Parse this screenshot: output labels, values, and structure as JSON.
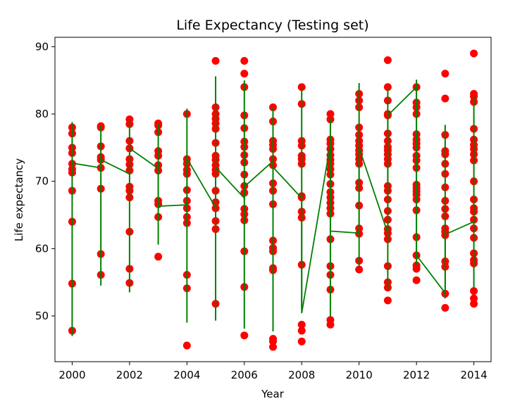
{
  "chart_data": {
    "type": "scatter",
    "title": "Life Expectancy (Testing set)",
    "xlabel": "Year",
    "ylabel": "Life expectancy",
    "xlim": [
      1999.4,
      2014.6
    ],
    "ylim": [
      43.2,
      91.4
    ],
    "xticks": [
      2000,
      2002,
      2004,
      2006,
      2008,
      2010,
      2012,
      2014
    ],
    "yticks": [
      50,
      60,
      70,
      80,
      90
    ],
    "grid": false,
    "colors": {
      "points": "#ff0000",
      "line": "#008000",
      "frame": "#000000"
    },
    "series": [
      {
        "marker": "circle",
        "points": [
          [
            2000,
            78.0
          ],
          [
            2000,
            77.1
          ],
          [
            2000,
            75.0
          ],
          [
            2000,
            74.2
          ],
          [
            2000,
            72.6
          ],
          [
            2000,
            71.8
          ],
          [
            2000,
            71.3
          ],
          [
            2000,
            68.6
          ],
          [
            2000,
            64.0
          ],
          [
            2000,
            54.8
          ],
          [
            2000,
            47.8
          ],
          [
            2001,
            78.2
          ],
          [
            2001,
            78.0
          ],
          [
            2001,
            75.2
          ],
          [
            2001,
            73.6
          ],
          [
            2001,
            73.2
          ],
          [
            2001,
            72.0
          ],
          [
            2001,
            68.9
          ],
          [
            2001,
            59.2
          ],
          [
            2001,
            56.1
          ],
          [
            2002,
            79.2
          ],
          [
            2002,
            78.5
          ],
          [
            2002,
            76.0
          ],
          [
            2002,
            74.9
          ],
          [
            2002,
            73.3
          ],
          [
            2002,
            72.5
          ],
          [
            2002,
            71.6
          ],
          [
            2002,
            69.2
          ],
          [
            2002,
            68.6
          ],
          [
            2002,
            67.6
          ],
          [
            2002,
            62.5
          ],
          [
            2002,
            57.0
          ],
          [
            2002,
            54.9
          ],
          [
            2003,
            78.6
          ],
          [
            2003,
            78.3
          ],
          [
            2003,
            77.3
          ],
          [
            2003,
            74.5
          ],
          [
            2003,
            73.8
          ],
          [
            2003,
            72.4
          ],
          [
            2003,
            71.6
          ],
          [
            2003,
            67.1
          ],
          [
            2003,
            66.6
          ],
          [
            2003,
            64.7
          ],
          [
            2003,
            58.8
          ],
          [
            2004,
            80.0
          ],
          [
            2004,
            73.3
          ],
          [
            2004,
            72.6
          ],
          [
            2004,
            71.7
          ],
          [
            2004,
            71.1
          ],
          [
            2004,
            68.7
          ],
          [
            2004,
            67.1
          ],
          [
            2004,
            66.0
          ],
          [
            2004,
            64.7
          ],
          [
            2004,
            63.8
          ],
          [
            2004,
            56.1
          ],
          [
            2004,
            54.1
          ],
          [
            2004,
            45.6
          ],
          [
            2005,
            87.9
          ],
          [
            2005,
            81.0
          ],
          [
            2005,
            80.0
          ],
          [
            2005,
            79.3
          ],
          [
            2005,
            78.6
          ],
          [
            2005,
            77.8
          ],
          [
            2005,
            75.7
          ],
          [
            2005,
            73.8
          ],
          [
            2005,
            73.2
          ],
          [
            2005,
            72.4
          ],
          [
            2005,
            71.7
          ],
          [
            2005,
            71.1
          ],
          [
            2005,
            68.6
          ],
          [
            2005,
            66.9
          ],
          [
            2005,
            66.0
          ],
          [
            2005,
            64.1
          ],
          [
            2005,
            62.9
          ],
          [
            2005,
            51.8
          ],
          [
            2006,
            87.9
          ],
          [
            2006,
            86.0
          ],
          [
            2006,
            84.0
          ],
          [
            2006,
            79.8
          ],
          [
            2006,
            77.9
          ],
          [
            2006,
            75.9
          ],
          [
            2006,
            75.1
          ],
          [
            2006,
            73.9
          ],
          [
            2006,
            72.8
          ],
          [
            2006,
            71.0
          ],
          [
            2006,
            69.3
          ],
          [
            2006,
            68.3
          ],
          [
            2006,
            65.9
          ],
          [
            2006,
            65.1
          ],
          [
            2006,
            64.2
          ],
          [
            2006,
            59.6
          ],
          [
            2006,
            54.3
          ],
          [
            2006,
            47.1
          ],
          [
            2007,
            81.0
          ],
          [
            2007,
            78.9
          ],
          [
            2007,
            76.0
          ],
          [
            2007,
            75.4
          ],
          [
            2007,
            74.8
          ],
          [
            2007,
            73.3
          ],
          [
            2007,
            72.4
          ],
          [
            2007,
            69.7
          ],
          [
            2007,
            68.6
          ],
          [
            2007,
            66.6
          ],
          [
            2007,
            61.2
          ],
          [
            2007,
            60.1
          ],
          [
            2007,
            59.6
          ],
          [
            2007,
            57.1
          ],
          [
            2007,
            56.8
          ],
          [
            2007,
            46.6
          ],
          [
            2007,
            46.2
          ],
          [
            2007,
            45.4
          ],
          [
            2008,
            84.0
          ],
          [
            2008,
            81.5
          ],
          [
            2008,
            76.0
          ],
          [
            2008,
            75.3
          ],
          [
            2008,
            73.8
          ],
          [
            2008,
            73.3
          ],
          [
            2008,
            72.6
          ],
          [
            2008,
            67.8
          ],
          [
            2008,
            67.6
          ],
          [
            2008,
            65.5
          ],
          [
            2008,
            64.6
          ],
          [
            2008,
            57.6
          ],
          [
            2008,
            48.7
          ],
          [
            2008,
            47.8
          ],
          [
            2008,
            46.2
          ],
          [
            2009,
            80.0
          ],
          [
            2009,
            79.2
          ],
          [
            2009,
            76.2
          ],
          [
            2009,
            75.6
          ],
          [
            2009,
            74.8
          ],
          [
            2009,
            73.9
          ],
          [
            2009,
            73.2
          ],
          [
            2009,
            72.6
          ],
          [
            2009,
            71.8
          ],
          [
            2009,
            71.0
          ],
          [
            2009,
            69.6
          ],
          [
            2009,
            68.4
          ],
          [
            2009,
            67.6
          ],
          [
            2009,
            66.8
          ],
          [
            2009,
            66.0
          ],
          [
            2009,
            65.2
          ],
          [
            2009,
            61.4
          ],
          [
            2009,
            57.4
          ],
          [
            2009,
            56.1
          ],
          [
            2009,
            53.9
          ],
          [
            2009,
            49.4
          ],
          [
            2009,
            48.7
          ],
          [
            2010,
            83.0
          ],
          [
            2010,
            82.0
          ],
          [
            2010,
            81.0
          ],
          [
            2010,
            78.0
          ],
          [
            2010,
            76.9
          ],
          [
            2010,
            76.0
          ],
          [
            2010,
            75.3
          ],
          [
            2010,
            74.6
          ],
          [
            2010,
            74.0
          ],
          [
            2010,
            73.3
          ],
          [
            2010,
            72.6
          ],
          [
            2010,
            69.8
          ],
          [
            2010,
            69.0
          ],
          [
            2010,
            66.4
          ],
          [
            2010,
            63.0
          ],
          [
            2010,
            62.2
          ],
          [
            2010,
            58.2
          ],
          [
            2010,
            56.9
          ],
          [
            2011,
            88.0
          ],
          [
            2011,
            84.0
          ],
          [
            2011,
            82.0
          ],
          [
            2011,
            80.0
          ],
          [
            2011,
            79.8
          ],
          [
            2011,
            77.1
          ],
          [
            2011,
            76.0
          ],
          [
            2011,
            75.1
          ],
          [
            2011,
            74.6
          ],
          [
            2011,
            74.0
          ],
          [
            2011,
            73.3
          ],
          [
            2011,
            72.6
          ],
          [
            2011,
            69.3
          ],
          [
            2011,
            68.6
          ],
          [
            2011,
            67.3
          ],
          [
            2011,
            65.6
          ],
          [
            2011,
            64.3
          ],
          [
            2011,
            62.9
          ],
          [
            2011,
            62.3
          ],
          [
            2011,
            61.4
          ],
          [
            2011,
            57.4
          ],
          [
            2011,
            55.0
          ],
          [
            2011,
            54.2
          ],
          [
            2011,
            52.3
          ],
          [
            2012,
            84.0
          ],
          [
            2012,
            81.7
          ],
          [
            2012,
            81.0
          ],
          [
            2012,
            80.0
          ],
          [
            2012,
            77.0
          ],
          [
            2012,
            76.2
          ],
          [
            2012,
            75.6
          ],
          [
            2012,
            75.0
          ],
          [
            2012,
            73.8
          ],
          [
            2012,
            73.1
          ],
          [
            2012,
            72.0
          ],
          [
            2012,
            69.5
          ],
          [
            2012,
            69.0
          ],
          [
            2012,
            68.5
          ],
          [
            2012,
            68.0
          ],
          [
            2012,
            67.3
          ],
          [
            2012,
            65.7
          ],
          [
            2012,
            61.7
          ],
          [
            2012,
            59.0
          ],
          [
            2012,
            57.5
          ],
          [
            2012,
            57.0
          ],
          [
            2012,
            55.3
          ],
          [
            2013,
            86.0
          ],
          [
            2013,
            82.3
          ],
          [
            2013,
            76.9
          ],
          [
            2013,
            74.5
          ],
          [
            2013,
            74.0
          ],
          [
            2013,
            72.6
          ],
          [
            2013,
            71.1
          ],
          [
            2013,
            69.1
          ],
          [
            2013,
            67.1
          ],
          [
            2013,
            65.9
          ],
          [
            2013,
            64.8
          ],
          [
            2013,
            63.0
          ],
          [
            2013,
            62.5
          ],
          [
            2013,
            62.0
          ],
          [
            2013,
            58.1
          ],
          [
            2013,
            57.3
          ],
          [
            2013,
            53.3
          ],
          [
            2013,
            51.2
          ],
          [
            2014,
            89.0
          ],
          [
            2014,
            83.0
          ],
          [
            2014,
            82.6
          ],
          [
            2014,
            81.8
          ],
          [
            2014,
            77.8
          ],
          [
            2014,
            76.2
          ],
          [
            2014,
            75.4
          ],
          [
            2014,
            74.8
          ],
          [
            2014,
            74.0
          ],
          [
            2014,
            73.1
          ],
          [
            2014,
            70.0
          ],
          [
            2014,
            67.3
          ],
          [
            2014,
            66.0
          ],
          [
            2014,
            65.5
          ],
          [
            2014,
            64.3
          ],
          [
            2014,
            63.0
          ],
          [
            2014,
            61.6
          ],
          [
            2014,
            59.3
          ],
          [
            2014,
            58.3
          ],
          [
            2014,
            57.8
          ],
          [
            2014,
            53.7
          ],
          [
            2014,
            52.6
          ],
          [
            2014,
            51.8
          ]
        ]
      },
      {
        "style": "line",
        "segments": [
          [
            [
              2000,
              78.8
            ],
            [
              2000,
              47.0
            ]
          ],
          [
            [
              2001,
              78.3
            ],
            [
              2001,
              54.5
            ]
          ],
          [
            [
              2002,
              79.0
            ],
            [
              2002,
              53.5
            ]
          ],
          [
            [
              2003,
              78.5
            ],
            [
              2003,
              60.6
            ]
          ],
          [
            [
              2004,
              80.8
            ],
            [
              2004,
              49.0
            ]
          ],
          [
            [
              2005,
              85.6
            ],
            [
              2005,
              49.3
            ]
          ],
          [
            [
              2006,
              85.0
            ],
            [
              2006,
              48.1
            ]
          ],
          [
            [
              2007,
              81.0
            ],
            [
              2007,
              47.7
            ]
          ],
          [
            [
              2008,
              84.0
            ],
            [
              2008,
              51.0
            ]
          ],
          [
            [
              2009,
              79.3
            ],
            [
              2009,
              49.9
            ]
          ],
          [
            [
              2010,
              84.6
            ],
            [
              2010,
              57.4
            ]
          ],
          [
            [
              2011,
              83.8
            ],
            [
              2011,
              53.8
            ]
          ],
          [
            [
              2012,
              85.1
            ],
            [
              2012,
              57.6
            ]
          ],
          [
            [
              2013,
              78.4
            ],
            [
              2013,
              52.6
            ]
          ],
          [
            [
              2014,
              82.6
            ],
            [
              2014,
              54.1
            ]
          ]
        ],
        "x": [
          2000,
          2001,
          2001,
          2002,
          2002,
          2003,
          2003,
          2004,
          2004,
          2005,
          2005,
          2006,
          2006,
          2007,
          2007,
          2008,
          2008,
          2009,
          2009,
          2010,
          2010,
          2011,
          2011,
          2012,
          2012,
          2013,
          2013,
          2014
        ],
        "y": [
          72.7,
          72.0,
          73.2,
          71.1,
          74.9,
          71.9,
          66.3,
          66.5,
          73.4,
          66.1,
          72.1,
          67.5,
          69.2,
          73.0,
          72.1,
          67.5,
          50.4,
          75.6,
          62.6,
          62.3,
          75.0,
          62.3,
          79.8,
          84.0,
          59.0,
          53.4,
          62.1,
          64.0
        ]
      }
    ]
  }
}
